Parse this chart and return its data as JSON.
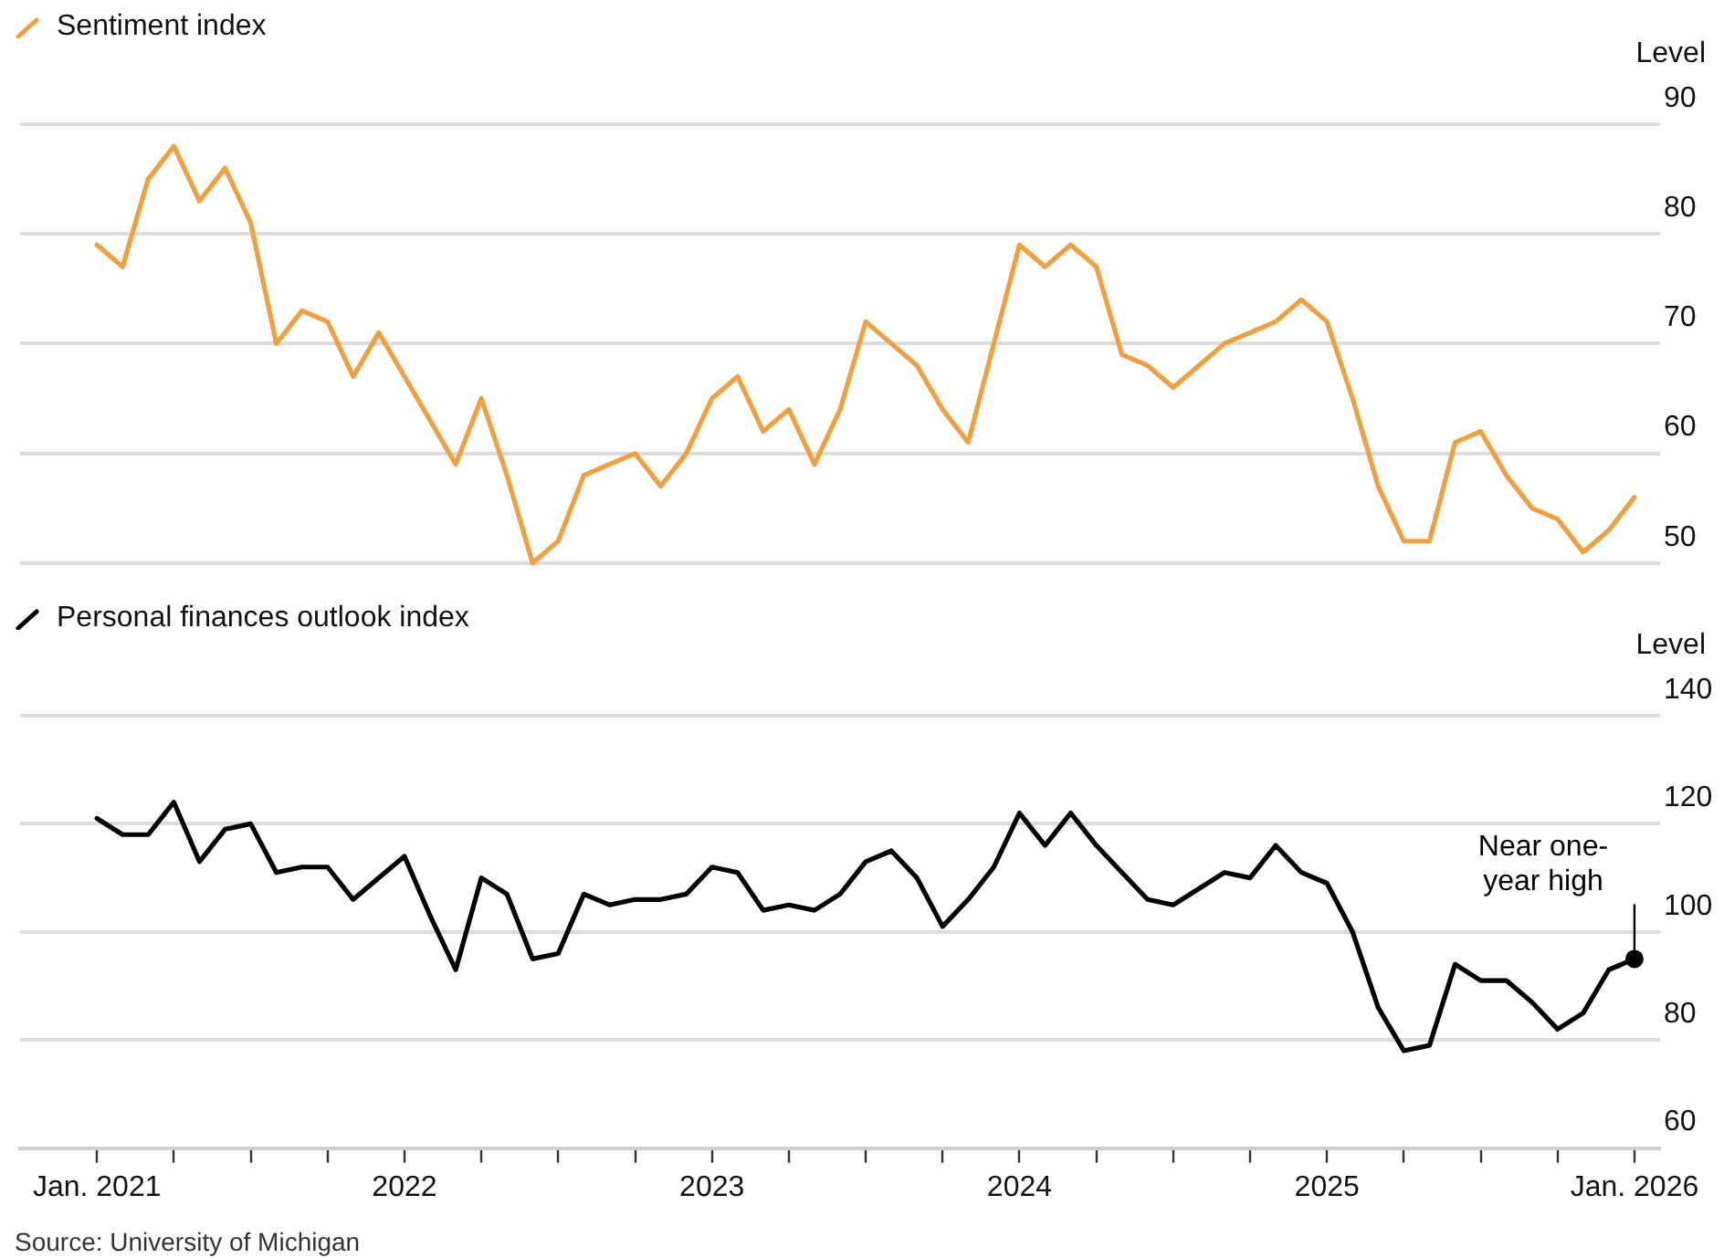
{
  "chart_data": [
    {
      "type": "line",
      "ylabel": "Level",
      "legend": "top left",
      "grid": "y",
      "tick_labels": "y",
      "marker": "none",
      "line_style": "solid",
      "x": [
        "2021-01",
        "2021-02",
        "2021-03",
        "2021-04",
        "2021-05",
        "2021-06",
        "2021-07",
        "2021-08",
        "2021-09",
        "2021-10",
        "2021-11",
        "2021-12",
        "2022-01",
        "2022-02",
        "2022-03",
        "2022-04",
        "2022-05",
        "2022-06",
        "2022-07",
        "2022-08",
        "2022-09",
        "2022-10",
        "2022-11",
        "2022-12",
        "2023-01",
        "2023-02",
        "2023-03",
        "2023-04",
        "2023-05",
        "2023-06",
        "2023-07",
        "2023-08",
        "2023-09",
        "2023-10",
        "2023-11",
        "2023-12",
        "2024-01",
        "2024-02",
        "2024-03",
        "2024-04",
        "2024-05",
        "2024-06",
        "2024-07",
        "2024-08",
        "2024-09",
        "2024-10",
        "2024-11",
        "2024-12",
        "2025-01",
        "2025-02",
        "2025-03",
        "2025-04",
        "2025-05",
        "2025-06",
        "2025-07",
        "2025-08",
        "2025-09",
        "2025-10",
        "2025-11",
        "2025-12",
        "2026-01"
      ],
      "series": [
        {
          "name": "Sentiment index",
          "color": "#f0a040",
          "values": [
            79,
            77,
            85,
            88,
            83,
            86,
            81,
            70,
            73,
            72,
            67,
            71,
            67,
            63,
            59,
            65,
            58,
            50,
            52,
            58,
            59,
            60,
            57,
            60,
            65,
            67,
            62,
            64,
            59,
            64,
            72,
            70,
            68,
            64,
            61,
            70,
            79,
            77,
            79,
            77,
            69,
            68,
            66,
            68,
            70,
            71,
            72,
            74,
            72,
            65,
            57,
            52,
            52,
            61,
            62,
            58,
            55,
            54,
            51,
            53,
            56
          ]
        }
      ],
      "xlim": [
        "2020-10",
        "2026-02"
      ],
      "ylim": [
        50,
        90
      ],
      "yticks": [
        50,
        60,
        70,
        80,
        90
      ]
    },
    {
      "type": "line",
      "ylabel": "Level",
      "legend": "top left",
      "grid": "y",
      "marker": "none",
      "line_style": "solid",
      "x": [
        "2021-01",
        "2021-02",
        "2021-03",
        "2021-04",
        "2021-05",
        "2021-06",
        "2021-07",
        "2021-08",
        "2021-09",
        "2021-10",
        "2021-11",
        "2021-12",
        "2022-01",
        "2022-02",
        "2022-03",
        "2022-04",
        "2022-05",
        "2022-06",
        "2022-07",
        "2022-08",
        "2022-09",
        "2022-10",
        "2022-11",
        "2022-12",
        "2023-01",
        "2023-02",
        "2023-03",
        "2023-04",
        "2023-05",
        "2023-06",
        "2023-07",
        "2023-08",
        "2023-09",
        "2023-10",
        "2023-11",
        "2023-12",
        "2024-01",
        "2024-02",
        "2024-03",
        "2024-04",
        "2024-05",
        "2024-06",
        "2024-07",
        "2024-08",
        "2024-09",
        "2024-10",
        "2024-11",
        "2024-12",
        "2025-01",
        "2025-02",
        "2025-03",
        "2025-04",
        "2025-05",
        "2025-06",
        "2025-07",
        "2025-08",
        "2025-09",
        "2025-10",
        "2025-11",
        "2025-12",
        "2026-01"
      ],
      "series": [
        {
          "name": "Personal finances outlook index",
          "color": "#000000",
          "values": [
            121,
            118,
            118,
            124,
            113,
            119,
            120,
            111,
            112,
            112,
            106,
            110,
            114,
            103,
            93,
            110,
            107,
            95,
            96,
            107,
            105,
            106,
            106,
            107,
            112,
            111,
            104,
            105,
            104,
            107,
            113,
            115,
            110,
            101,
            106,
            112,
            122,
            116,
            122,
            116,
            111,
            106,
            105,
            108,
            111,
            110,
            116,
            111,
            109,
            100,
            86,
            78,
            79,
            94,
            91,
            91,
            87,
            82,
            85,
            93,
            95
          ]
        }
      ],
      "xlim": [
        "2020-10",
        "2026-02"
      ],
      "ylim": [
        60,
        140
      ],
      "yticks": [
        60,
        80,
        100,
        120,
        140
      ],
      "xticks": [
        {
          "value": "2021-01",
          "label": "Jan. 2021"
        },
        {
          "value": "2021-04",
          "label": null
        },
        {
          "value": "2021-07",
          "label": null
        },
        {
          "value": "2021-10",
          "label": null
        },
        {
          "value": "2022-01",
          "label": "2022"
        },
        {
          "value": "2022-04",
          "label": null
        },
        {
          "value": "2022-07",
          "label": null
        },
        {
          "value": "2022-10",
          "label": null
        },
        {
          "value": "2023-01",
          "label": "2023"
        },
        {
          "value": "2023-04",
          "label": null
        },
        {
          "value": "2023-07",
          "label": null
        },
        {
          "value": "2023-10",
          "label": null
        },
        {
          "value": "2024-01",
          "label": "2024"
        },
        {
          "value": "2024-04",
          "label": null
        },
        {
          "value": "2024-07",
          "label": null
        },
        {
          "value": "2024-10",
          "label": null
        },
        {
          "value": "2025-01",
          "label": "2025"
        },
        {
          "value": "2025-04",
          "label": null
        },
        {
          "value": "2025-07",
          "label": null
        },
        {
          "value": "2025-10",
          "label": null
        },
        {
          "value": "2026-01",
          "label": "Jan. 2026"
        }
      ],
      "annotations": [
        {
          "text": "Near one-year high",
          "x": "2026-01",
          "y": 95
        },
        "Source: University of Michigan"
      ]
    }
  ]
}
